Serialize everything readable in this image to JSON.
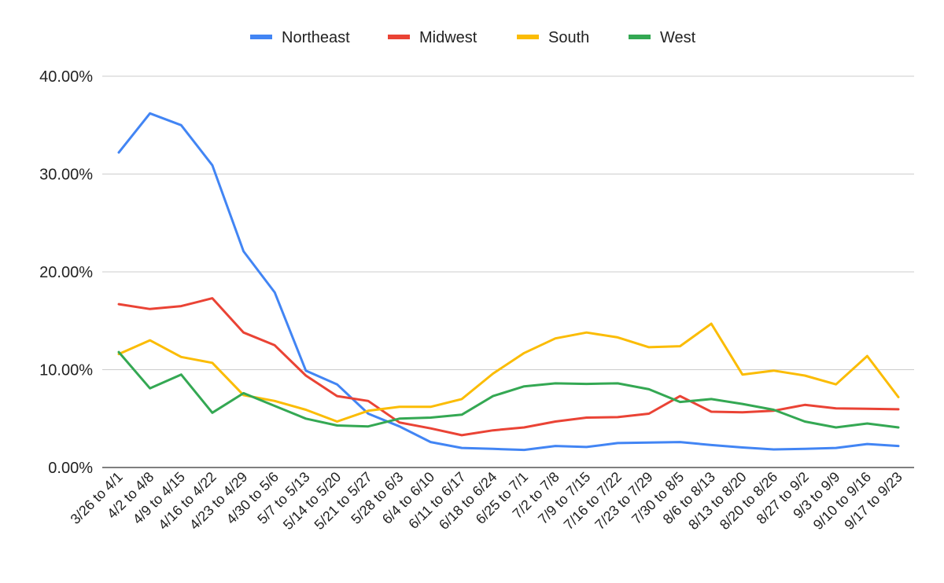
{
  "chart_data": {
    "type": "line",
    "title": "",
    "xlabel": "",
    "ylabel": "",
    "legend_position": "top",
    "grid": true,
    "ylim": [
      0,
      40
    ],
    "y_ticks": [
      "0.00%",
      "10.00%",
      "20.00%",
      "30.00%",
      "40.00%"
    ],
    "categories": [
      "3/26 to 4/1",
      "4/2 to 4/8",
      "4/9 to 4/15",
      "4/16 to 4/22",
      "4/23 to 4/29",
      "4/30 to 5/6",
      "5/7 to 5/13",
      "5/14 to 5/20",
      "5/21 to 5/27",
      "5/28 to 6/3",
      "6/4 to 6/10",
      "6/11 to 6/17",
      "6/18 to 6/24",
      "6/25 to 7/1",
      "7/2 to 7/8",
      "7/9 to 7/15",
      "7/16 to 7/22",
      "7/23 to 7/29",
      "7/30 to 8/5",
      "8/6 to 8/13",
      "8/13 to 8/20",
      "8/20 to 8/26",
      "8/27 to 9/2",
      "9/3 to 9/9",
      "9/10 to 9/16",
      "9/17 to 9/23"
    ],
    "series": [
      {
        "name": "Northeast",
        "color": "#4285F4",
        "values": [
          32.2,
          36.2,
          35.0,
          30.9,
          22.1,
          17.9,
          9.9,
          8.5,
          5.5,
          4.2,
          2.6,
          2.0,
          1.9,
          1.8,
          2.2,
          2.1,
          2.5,
          2.55,
          2.6,
          2.3,
          2.05,
          1.85,
          1.9,
          2.0,
          2.4,
          2.2
        ]
      },
      {
        "name": "Midwest",
        "color": "#EA4335",
        "values": [
          16.7,
          16.2,
          16.5,
          17.3,
          13.8,
          12.5,
          9.4,
          7.3,
          6.8,
          4.6,
          4.0,
          3.3,
          3.8,
          4.1,
          4.7,
          5.1,
          5.15,
          5.5,
          7.3,
          5.7,
          5.65,
          5.8,
          6.4,
          6.05,
          6.0,
          5.95
        ]
      },
      {
        "name": "South",
        "color": "#FBBC04",
        "values": [
          11.6,
          13.0,
          11.3,
          10.7,
          7.4,
          6.8,
          5.9,
          4.7,
          5.8,
          6.2,
          6.2,
          7.0,
          9.6,
          11.7,
          13.2,
          13.8,
          13.3,
          12.3,
          12.4,
          14.7,
          9.5,
          9.9,
          9.4,
          8.5,
          11.4,
          7.2
        ]
      },
      {
        "name": "West",
        "color": "#34A853",
        "values": [
          11.8,
          8.1,
          9.5,
          5.6,
          7.6,
          6.3,
          5.0,
          4.3,
          4.2,
          5.0,
          5.1,
          5.4,
          7.3,
          8.3,
          8.6,
          8.55,
          8.6,
          8.0,
          6.7,
          7.0,
          6.5,
          5.9,
          4.7,
          4.1,
          4.5,
          4.1
        ]
      }
    ]
  }
}
